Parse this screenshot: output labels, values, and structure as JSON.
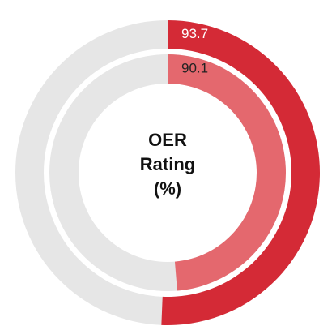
{
  "chart_data": {
    "type": "radial-bar",
    "title": "OER Rating (%)",
    "values": [
      93.7,
      90.1
    ],
    "colors": [
      "#d42a36",
      "#e4686e"
    ],
    "label_colors": [
      "#ffffff",
      "#222222"
    ],
    "track_color": "#e6e6e6",
    "ylim": [
      0,
      185
    ]
  }
}
